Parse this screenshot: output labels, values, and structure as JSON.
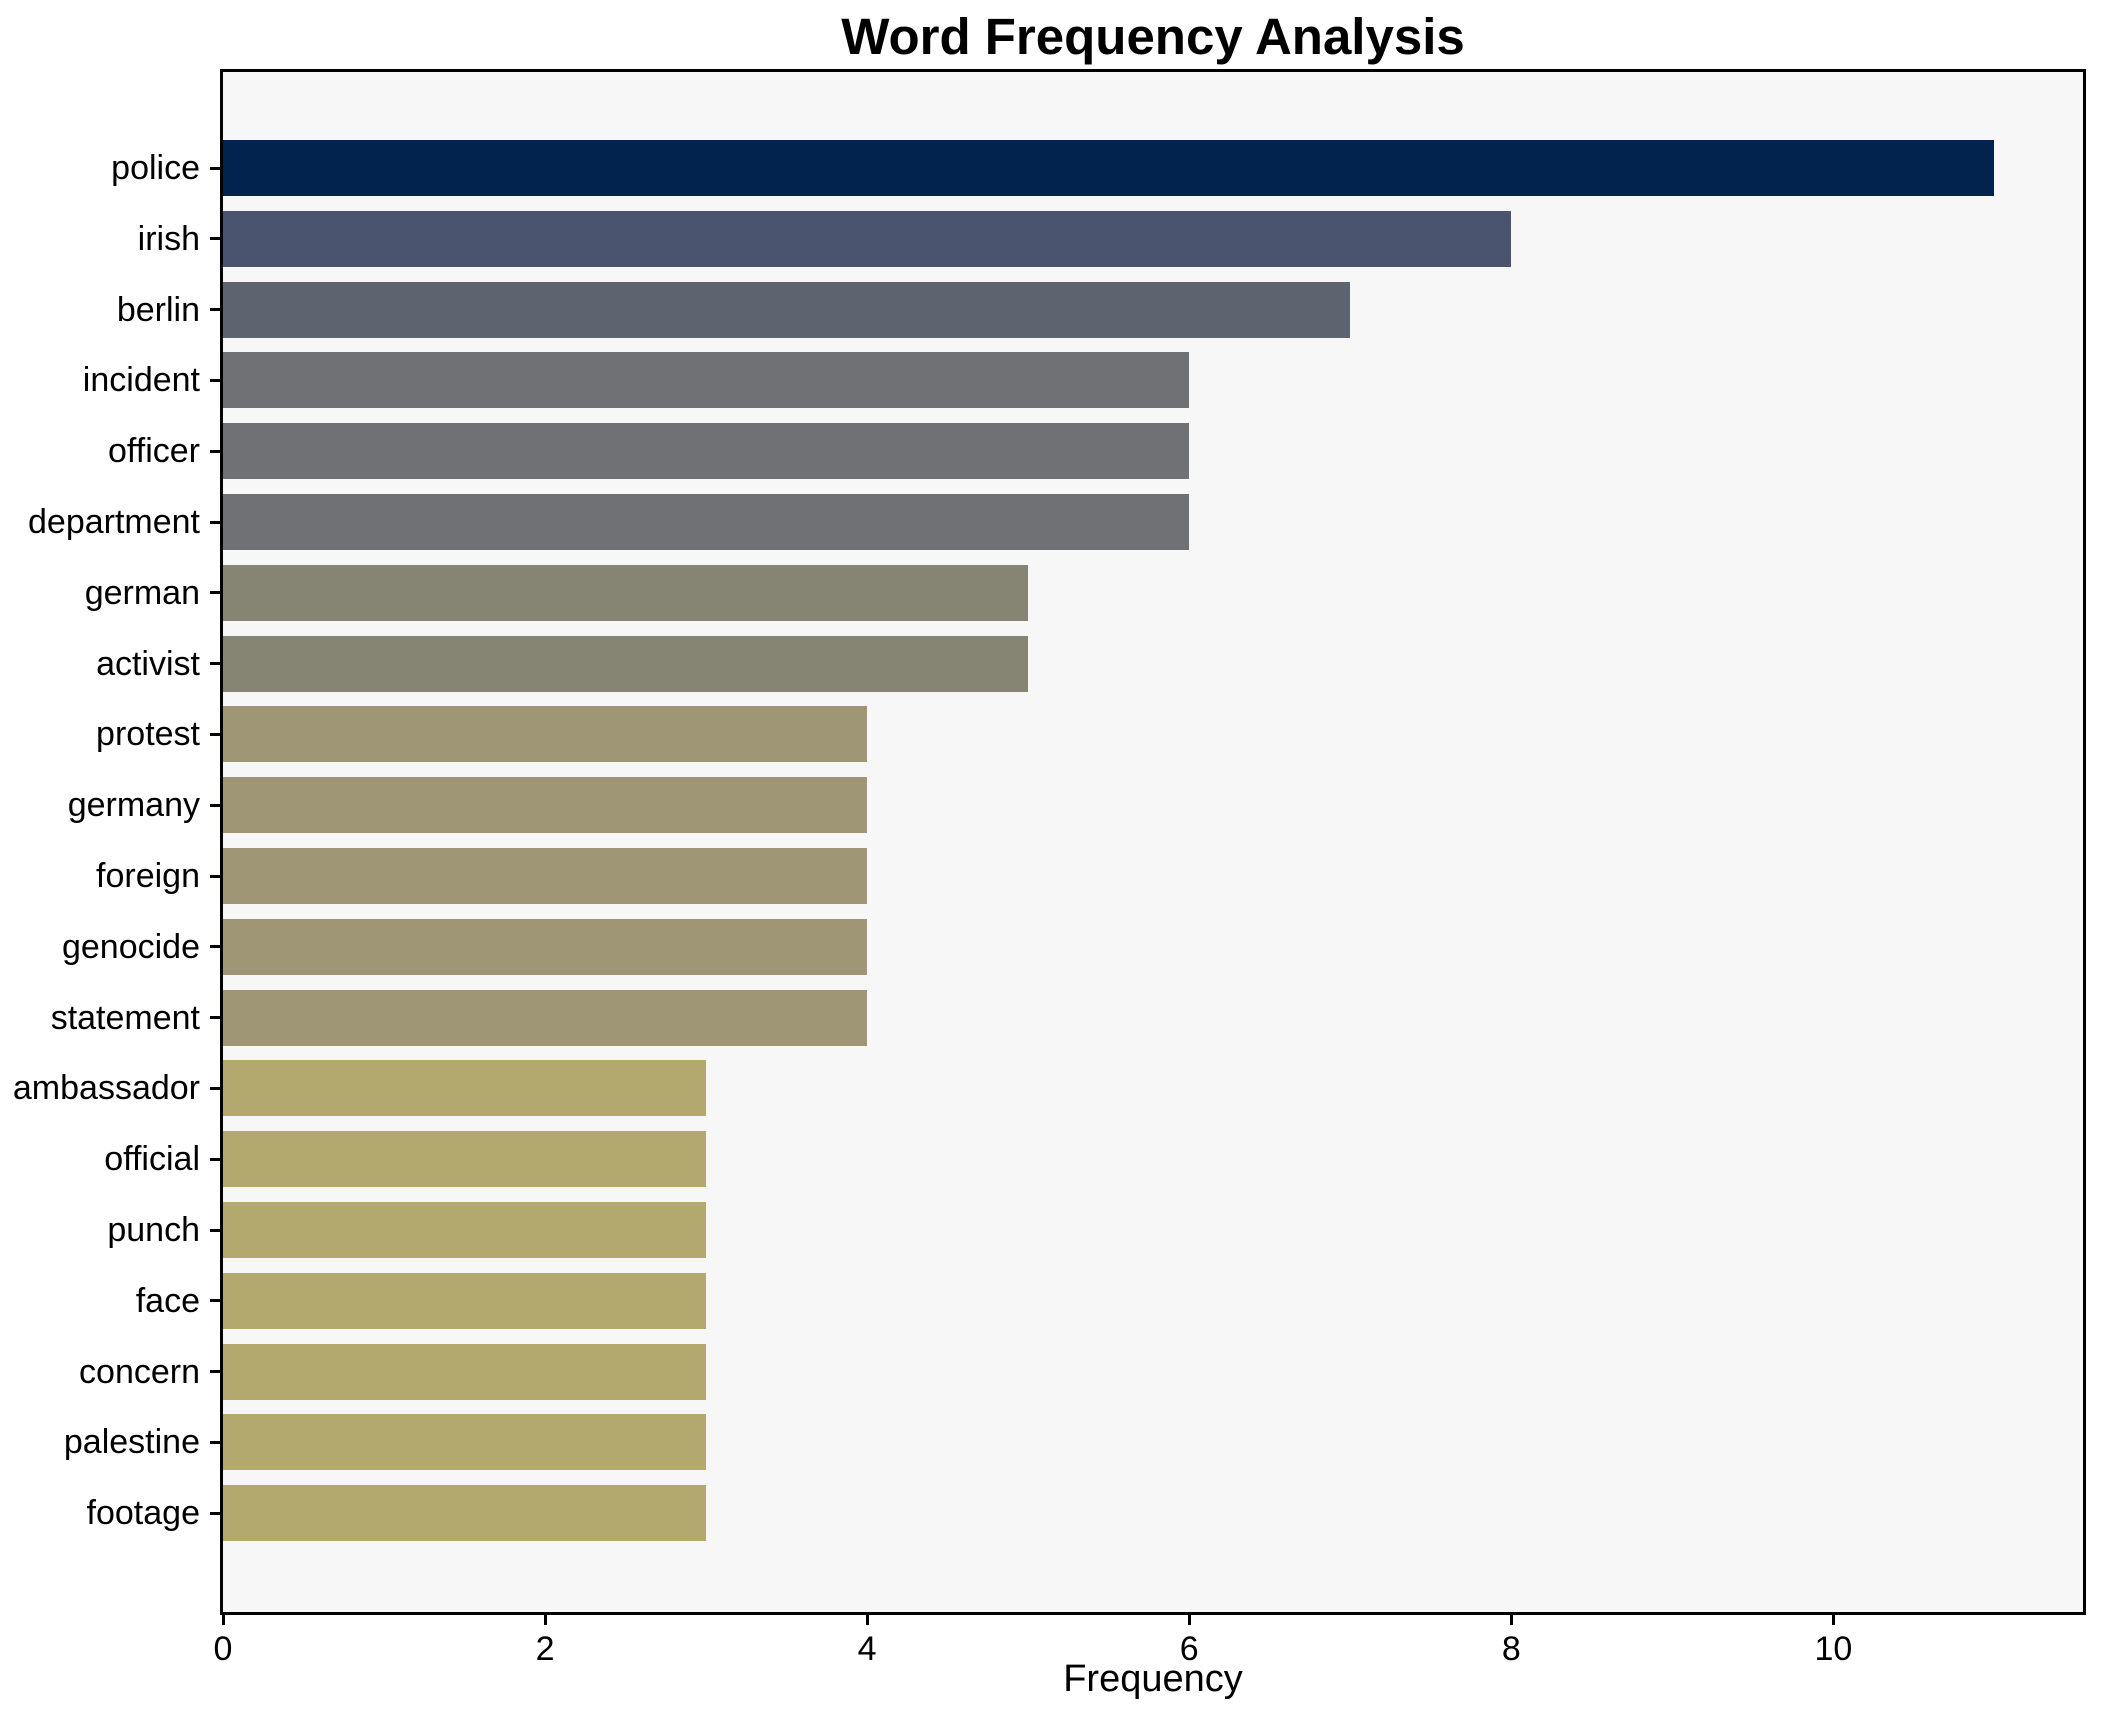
{
  "chart_data": {
    "type": "bar",
    "orientation": "horizontal",
    "title": "Word Frequency Analysis",
    "xlabel": "Frequency",
    "ylabel": "",
    "categories": [
      "police",
      "irish",
      "berlin",
      "incident",
      "officer",
      "department",
      "german",
      "activist",
      "protest",
      "germany",
      "foreign",
      "genocide",
      "statement",
      "ambassador",
      "official",
      "punch",
      "face",
      "concern",
      "palestine",
      "footage"
    ],
    "values": [
      11,
      8,
      7,
      6,
      6,
      6,
      5,
      5,
      4,
      4,
      4,
      4,
      4,
      3,
      3,
      3,
      3,
      3,
      3,
      3
    ],
    "bar_colors": [
      "#02234d",
      "#4a546e",
      "#5e6370",
      "#707174",
      "#707174",
      "#707174",
      "#868473",
      "#868473",
      "#9e9674",
      "#9e9674",
      "#9e9674",
      "#9e9674",
      "#9e9674",
      "#b3a96e",
      "#b3a96e",
      "#b3a96e",
      "#b3a96e",
      "#b3a96e",
      "#b3a96e",
      "#b3a96e"
    ],
    "xticks": [
      0,
      2,
      4,
      6,
      8,
      10
    ],
    "xlim": [
      0,
      11.55
    ],
    "grid": false,
    "legend_position": "none",
    "plot_background": "#f7f7f8",
    "figure_background": "#ffffff",
    "spine_color": "#000000"
  }
}
